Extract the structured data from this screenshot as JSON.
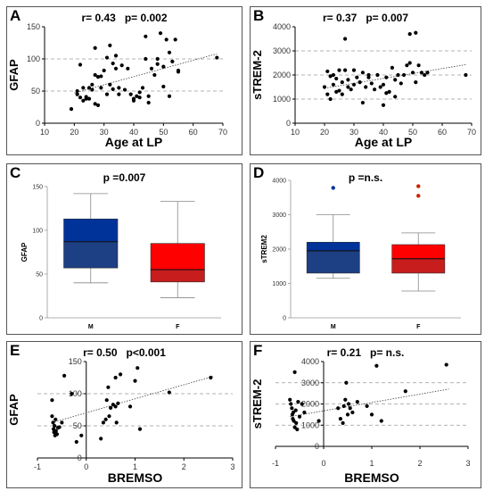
{
  "panels": {
    "a": {
      "letter": "A",
      "stat": "r= 0.43   p= 0.002"
    },
    "b": {
      "letter": "B",
      "stat": "r= 0.37   p= 0.007"
    },
    "c": {
      "letter": "C",
      "stat": "p =0.007"
    },
    "d": {
      "letter": "D",
      "stat": "p =n.s."
    },
    "e": {
      "letter": "E",
      "stat": "r= 0.50   p<0.001"
    },
    "f": {
      "letter": "F",
      "stat": "r= 0.21   p= n.s."
    }
  },
  "chart_data": [
    {
      "id": "A",
      "type": "scatter",
      "xlabel": "Age at LP",
      "ylabel": "GFAP",
      "xlim": [
        10,
        70
      ],
      "ylim": [
        0,
        150
      ],
      "xticks": [
        10,
        20,
        30,
        40,
        50,
        60,
        70
      ],
      "yticks": [
        0,
        50,
        100,
        150
      ],
      "grid_y": [
        50,
        100
      ],
      "trend": [
        [
          20,
          47
        ],
        [
          68,
          108
        ]
      ],
      "points": [
        [
          19,
          22
        ],
        [
          21,
          50
        ],
        [
          21,
          45
        ],
        [
          22,
          91
        ],
        [
          22,
          40
        ],
        [
          23,
          55
        ],
        [
          23,
          35
        ],
        [
          24,
          38
        ],
        [
          24,
          41
        ],
        [
          25,
          55
        ],
        [
          25,
          38
        ],
        [
          26,
          52
        ],
        [
          26,
          60
        ],
        [
          27,
          75
        ],
        [
          27,
          117
        ],
        [
          27,
          30
        ],
        [
          28,
          72
        ],
        [
          28,
          28
        ],
        [
          29,
          73
        ],
        [
          29,
          55
        ],
        [
          30,
          82
        ],
        [
          31,
          102
        ],
        [
          31,
          45
        ],
        [
          32,
          121
        ],
        [
          32,
          60
        ],
        [
          33,
          93
        ],
        [
          33,
          53
        ],
        [
          34,
          85
        ],
        [
          34,
          105
        ],
        [
          35,
          55
        ],
        [
          35,
          45
        ],
        [
          36,
          90
        ],
        [
          37,
          52
        ],
        [
          38,
          85
        ],
        [
          39,
          45
        ],
        [
          40,
          38
        ],
        [
          40,
          35
        ],
        [
          41,
          42
        ],
        [
          42,
          48
        ],
        [
          42,
          40
        ],
        [
          43,
          55
        ],
        [
          44,
          135
        ],
        [
          44,
          100
        ],
        [
          45,
          32
        ],
        [
          45,
          42
        ],
        [
          46,
          85
        ],
        [
          47,
          75
        ],
        [
          48,
          100
        ],
        [
          48,
          92
        ],
        [
          49,
          140
        ],
        [
          50,
          88
        ],
        [
          50,
          57
        ],
        [
          51,
          130
        ],
        [
          52,
          110
        ],
        [
          52,
          42
        ],
        [
          53,
          96
        ],
        [
          54,
          130
        ],
        [
          55,
          80
        ],
        [
          55,
          82
        ],
        [
          68,
          102
        ]
      ]
    },
    {
      "id": "B",
      "type": "scatter",
      "xlabel": "Age at LP",
      "ylabel": "sTREM-2",
      "xlim": [
        10,
        70
      ],
      "ylim": [
        0,
        4000
      ],
      "xticks": [
        10,
        20,
        30,
        40,
        50,
        60,
        70
      ],
      "yticks": [
        0,
        1000,
        2000,
        3000,
        4000
      ],
      "grid_y": [
        1000,
        2000,
        3000
      ],
      "trend": [
        [
          20,
          1450
        ],
        [
          68,
          2430
        ]
      ],
      "points": [
        [
          20,
          1500
        ],
        [
          21,
          1200
        ],
        [
          21,
          2150
        ],
        [
          22,
          1950
        ],
        [
          22,
          1000
        ],
        [
          23,
          1600
        ],
        [
          23,
          2000
        ],
        [
          24,
          1850
        ],
        [
          24,
          1300
        ],
        [
          25,
          1350
        ],
        [
          25,
          2200
        ],
        [
          26,
          1700
        ],
        [
          26,
          1200
        ],
        [
          27,
          3500
        ],
        [
          27,
          2200
        ],
        [
          28,
          1500
        ],
        [
          28,
          1800
        ],
        [
          29,
          1400
        ],
        [
          30,
          2200
        ],
        [
          30,
          1600
        ],
        [
          31,
          1900
        ],
        [
          32,
          1700
        ],
        [
          33,
          2100
        ],
        [
          33,
          850
        ],
        [
          34,
          1500
        ],
        [
          35,
          2000
        ],
        [
          35,
          1900
        ],
        [
          36,
          1650
        ],
        [
          37,
          1400
        ],
        [
          38,
          2000
        ],
        [
          39,
          1500
        ],
        [
          40,
          1600
        ],
        [
          40,
          750
        ],
        [
          41,
          1250
        ],
        [
          41,
          1900
        ],
        [
          42,
          1300
        ],
        [
          43,
          2300
        ],
        [
          44,
          1800
        ],
        [
          44,
          1100
        ],
        [
          45,
          2000
        ],
        [
          46,
          1650
        ],
        [
          47,
          2000
        ],
        [
          48,
          2400
        ],
        [
          49,
          3700
        ],
        [
          49,
          2500
        ],
        [
          50,
          2100
        ],
        [
          51,
          1700
        ],
        [
          51,
          3750
        ],
        [
          52,
          2400
        ],
        [
          53,
          2100
        ],
        [
          54,
          2000
        ],
        [
          55,
          2100
        ],
        [
          68,
          2000
        ]
      ]
    },
    {
      "id": "C",
      "type": "box",
      "ylabel": "GFAP",
      "categories": [
        "M",
        "F"
      ],
      "ylim": [
        0,
        150
      ],
      "yticks": [
        0,
        50,
        100,
        150
      ],
      "boxes": [
        {
          "label": "M",
          "min": 40,
          "q1": 57,
          "median": 87,
          "q3": 113,
          "max": 142,
          "color": "#003399"
        },
        {
          "label": "F",
          "min": 23,
          "q1": 41,
          "median": 55,
          "q3": 85,
          "max": 133,
          "color": "#FF0000"
        }
      ],
      "outliers": []
    },
    {
      "id": "D",
      "type": "box",
      "ylabel": "sTREM2",
      "categories": [
        "M",
        "F"
      ],
      "ylim": [
        0,
        4000
      ],
      "yticks": [
        0,
        1000,
        2000,
        3000,
        4000
      ],
      "boxes": [
        {
          "label": "M",
          "min": 1150,
          "q1": 1300,
          "median": 1950,
          "q3": 2200,
          "max": 3000,
          "color": "#003399"
        },
        {
          "label": "F",
          "min": 780,
          "q1": 1300,
          "median": 1720,
          "q3": 2130,
          "max": 2470,
          "color": "#FF0000"
        }
      ],
      "outliers": [
        {
          "category": "M",
          "value": 3780
        },
        {
          "category": "F",
          "value": 3830
        },
        {
          "category": "F",
          "value": 3550
        }
      ]
    },
    {
      "id": "E",
      "type": "scatter",
      "xlabel": "BREMSO",
      "ylabel": "GFAP",
      "xlim": [
        -1,
        3
      ],
      "ylim": [
        0,
        150
      ],
      "xticks": [
        -1,
        0,
        1,
        2,
        3
      ],
      "yticks": [
        0,
        50,
        100,
        150
      ],
      "grid_y": [
        50,
        100
      ],
      "trend": [
        [
          -0.7,
          55
        ],
        [
          2.6,
          127
        ]
      ],
      "points": [
        [
          -0.7,
          90
        ],
        [
          -0.7,
          65
        ],
        [
          -0.68,
          55
        ],
        [
          -0.67,
          45
        ],
        [
          -0.66,
          40
        ],
        [
          -0.65,
          50
        ],
        [
          -0.64,
          35
        ],
        [
          -0.63,
          60
        ],
        [
          -0.62,
          42
        ],
        [
          -0.6,
          37
        ],
        [
          -0.58,
          47
        ],
        [
          -0.55,
          48
        ],
        [
          -0.5,
          55
        ],
        [
          -0.45,
          128
        ],
        [
          -0.3,
          100
        ],
        [
          -0.2,
          25
        ],
        [
          -0.1,
          35
        ],
        [
          0.3,
          30
        ],
        [
          0.35,
          55
        ],
        [
          0.4,
          60
        ],
        [
          0.42,
          90
        ],
        [
          0.45,
          110
        ],
        [
          0.47,
          65
        ],
        [
          0.5,
          78
        ],
        [
          0.55,
          83
        ],
        [
          0.6,
          80
        ],
        [
          0.6,
          125
        ],
        [
          0.62,
          55
        ],
        [
          0.65,
          85
        ],
        [
          0.7,
          130
        ],
        [
          0.9,
          80
        ],
        [
          1.0,
          120
        ],
        [
          1.05,
          140
        ],
        [
          1.1,
          45
        ],
        [
          1.7,
          102
        ],
        [
          2.55,
          125
        ]
      ]
    },
    {
      "id": "F",
      "type": "scatter",
      "xlabel": "BREMSO",
      "ylabel": "sTREM-2",
      "xlim": [
        -1,
        3
      ],
      "ylim": [
        0,
        4000
      ],
      "xticks": [
        -1,
        0,
        1,
        2,
        3
      ],
      "yticks": [
        0,
        1000,
        2000,
        3000,
        4000
      ],
      "grid_y": [
        1000,
        2000,
        3000
      ],
      "trend": [
        [
          -0.7,
          1400
        ],
        [
          2.6,
          2700
        ]
      ],
      "points": [
        [
          -0.7,
          2200
        ],
        [
          -0.68,
          2000
        ],
        [
          -0.66,
          1800
        ],
        [
          -0.65,
          1500
        ],
        [
          -0.64,
          1300
        ],
        [
          -0.63,
          1600
        ],
        [
          -0.62,
          1200
        ],
        [
          -0.6,
          3500
        ],
        [
          -0.6,
          900
        ],
        [
          -0.58,
          1700
        ],
        [
          -0.57,
          1100
        ],
        [
          -0.55,
          800
        ],
        [
          -0.53,
          2100
        ],
        [
          -0.5,
          1400
        ],
        [
          -0.45,
          2000
        ],
        [
          -0.4,
          1600
        ],
        [
          -0.1,
          1200
        ],
        [
          0.3,
          1800
        ],
        [
          0.35,
          1300
        ],
        [
          0.4,
          1100
        ],
        [
          0.42,
          1900
        ],
        [
          0.45,
          2200
        ],
        [
          0.47,
          3000
        ],
        [
          0.5,
          1500
        ],
        [
          0.52,
          2000
        ],
        [
          0.55,
          1800
        ],
        [
          0.6,
          1600
        ],
        [
          0.7,
          2100
        ],
        [
          0.9,
          1900
        ],
        [
          1.0,
          1500
        ],
        [
          1.1,
          3800
        ],
        [
          1.2,
          1200
        ],
        [
          1.7,
          2600
        ],
        [
          2.55,
          3850
        ]
      ]
    }
  ]
}
